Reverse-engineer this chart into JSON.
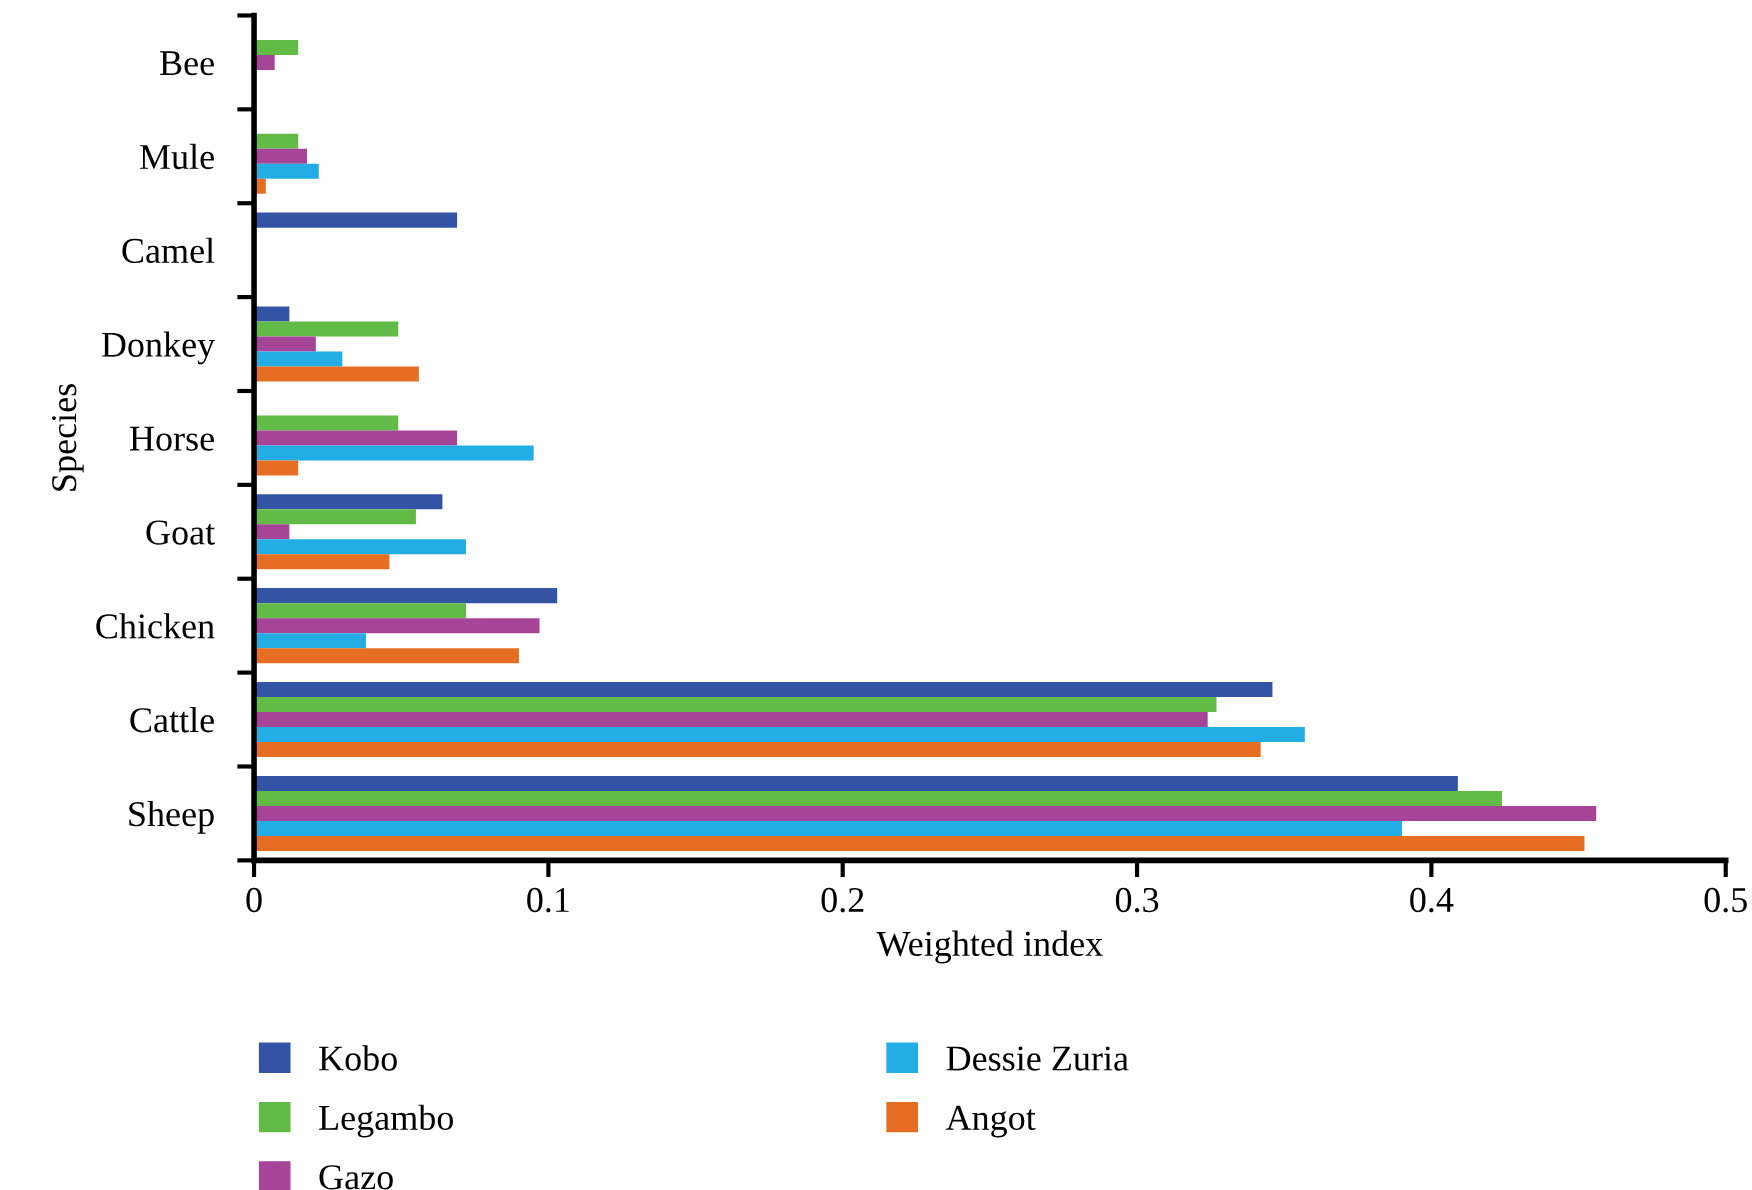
{
  "chart_data": {
    "type": "bar",
    "orientation": "horizontal",
    "ylabel": "Species",
    "xlabel": "Weighted index",
    "categories": [
      "Bee",
      "Mule",
      "Camel",
      "Donkey",
      "Horse",
      "Goat",
      "Chicken",
      "Cattle",
      "Sheep"
    ],
    "series": [
      {
        "name": "Kobo",
        "color": "#3353a4",
        "values": [
          null,
          null,
          0.069,
          0.012,
          null,
          0.064,
          0.103,
          0.346,
          0.409
        ]
      },
      {
        "name": "Legambo",
        "color": "#62bb46",
        "values": [
          0.015,
          0.015,
          null,
          0.049,
          0.049,
          0.055,
          0.072,
          0.327,
          0.424
        ]
      },
      {
        "name": "Gazo",
        "color": "#a64497",
        "values": [
          0.007,
          0.018,
          null,
          0.021,
          0.069,
          0.012,
          0.097,
          0.324,
          0.456
        ]
      },
      {
        "name": "Dessie Zuria",
        "color": "#22ade4",
        "values": [
          null,
          0.022,
          null,
          0.03,
          0.095,
          0.072,
          0.038,
          0.357,
          0.39
        ]
      },
      {
        "name": "Angot",
        "color": "#e66e23",
        "values": [
          null,
          0.004,
          null,
          0.056,
          0.015,
          0.046,
          0.09,
          0.342,
          0.452
        ]
      }
    ],
    "xlim": [
      0,
      0.5
    ],
    "xticks": [
      0,
      0.1,
      0.2,
      0.3,
      0.4,
      0.5
    ],
    "grid": false,
    "legend": "bottom"
  }
}
